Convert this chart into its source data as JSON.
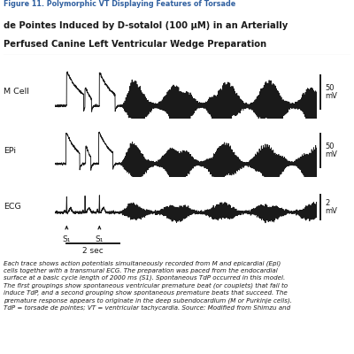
{
  "title_line0": "Figure 11. Polymorphic VT Displaying Features of Torsade",
  "title_line1": "de Pointes Induced by D-sotalol (100 μM) in an Arterially",
  "title_line2": "Perfused Canine Left Ventricular Wedge Preparation",
  "trace_labels": [
    "M Cell",
    "EPi",
    "ECG"
  ],
  "scale_labels_50": "50\nmV",
  "scale_labels_2": "2\nmV",
  "time_label": "2 sec",
  "s1_label": "S₁",
  "caption": "Each trace shows action potentials simultaneously recorded from M and epicardial (Epi)\ncells together with a transmural ECG. The preparation was paced from the endocardial\nsurface at a basic cycle length of 2000 ms (S1). Spontaneous TdP occurred in this model.\nThe first groupings show spontaneous ventricular premature beat (or couplets) that fail to\ninduce TdP, and a second grouping show spontaneous premature beats that succeed. The\npremature response appears to originate in the deep subendocardium (M or Purkinje cells).\nTdP = torsade de pointes; VT = ventricular tachycardia. Source: Modified from Shimzu and",
  "background_color": "#ffffff",
  "trace_color": "#1a1a1a",
  "text_color": "#1a1a1a",
  "title_color": "#3060a0",
  "sep_color": "#aaaaaa"
}
